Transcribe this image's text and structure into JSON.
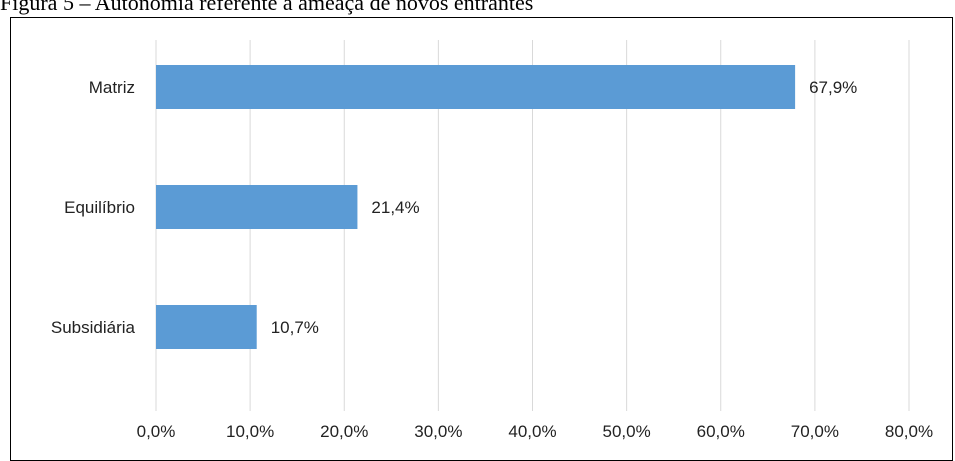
{
  "figure": {
    "title": "Figura 5 – Autonomia referente à ameaça de novos entrantes"
  },
  "chart_data": {
    "type": "bar",
    "orientation": "horizontal",
    "title": "",
    "xlabel": "",
    "ylabel": "",
    "categories": [
      "Matriz",
      "Equilíbrio",
      "Subsidiária"
    ],
    "values": [
      67.9,
      21.4,
      10.7
    ],
    "value_labels": [
      "67,9%",
      "21,4%",
      "10,7%"
    ],
    "xlim": [
      0,
      80
    ],
    "x_ticks": [
      0,
      10,
      20,
      30,
      40,
      50,
      60,
      70,
      80
    ],
    "x_tick_labels": [
      "0,0%",
      "10,0%",
      "20,0%",
      "30,0%",
      "40,0%",
      "50,0%",
      "60,0%",
      "70,0%",
      "80,0%"
    ],
    "grid": true,
    "legend": "none",
    "bar_color": "#5b9bd5",
    "grid_color": "#d9d9d9"
  }
}
